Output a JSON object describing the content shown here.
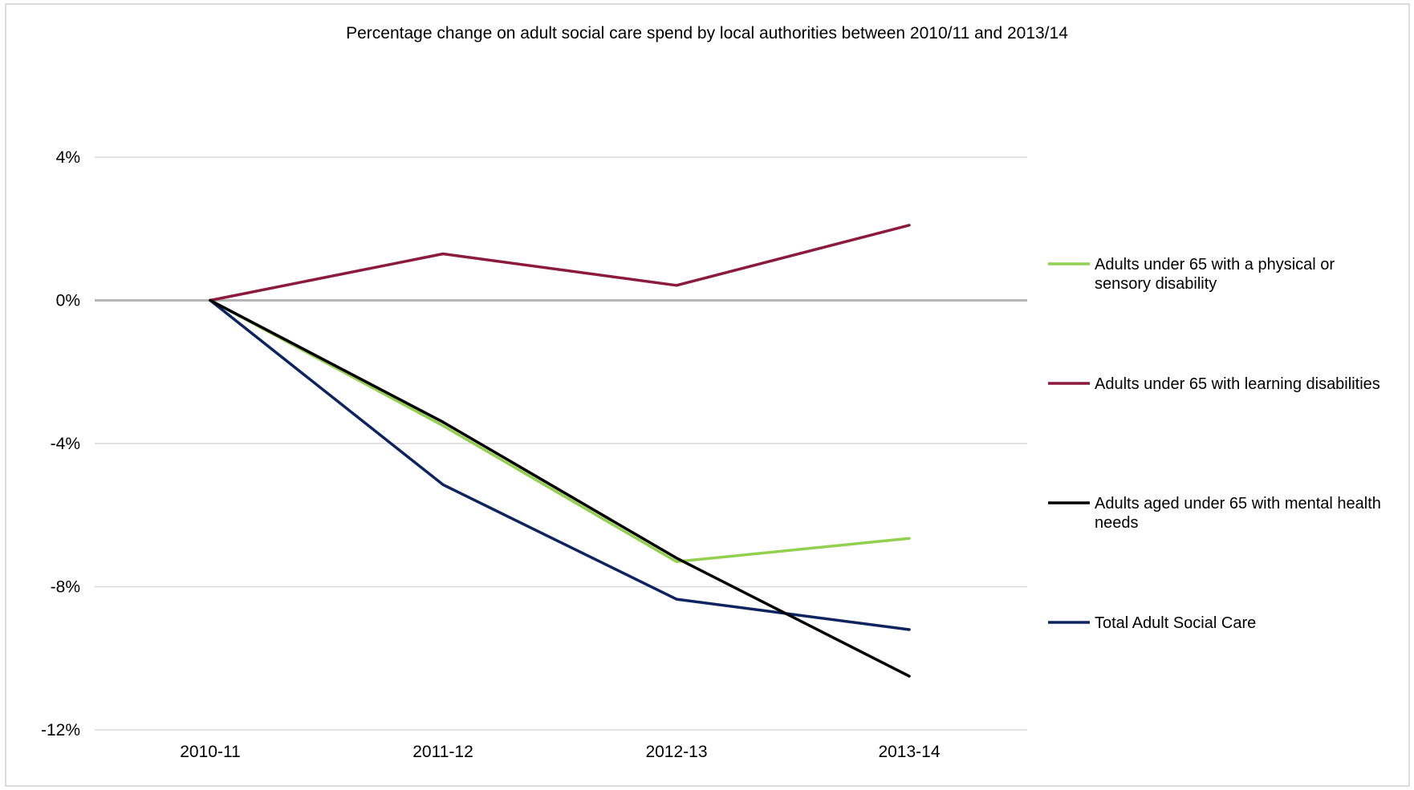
{
  "chart_data": {
    "type": "line",
    "title": "Percentage change on adult social care spend by local authorities between 2010/11 and 2013/14",
    "xlabel": "",
    "ylabel": "",
    "categories": [
      "2010-11",
      "2011-12",
      "2012-13",
      "2013-14"
    ],
    "ylim": [
      -12,
      4
    ],
    "yticks": [
      4,
      0,
      -4,
      -8,
      -12
    ],
    "ytick_labels": [
      "4%",
      "0%",
      "-4%",
      "-8%",
      "-12%"
    ],
    "grid": true,
    "legend_position": "right",
    "series": [
      {
        "name": "Adults under 65 with a physical or sensory disability",
        "legend_lines": [
          "Adults under 65 with a physical or",
          "sensory disability"
        ],
        "color": "#92d050",
        "values": [
          0,
          -3.5,
          -7.3,
          -6.65
        ]
      },
      {
        "name": "Adults under 65 with learning disabilities",
        "legend_lines": [
          "Adults under 65 with learning disabilities"
        ],
        "color": "#8b1a3c",
        "values": [
          0,
          1.3,
          0.42,
          2.1
        ]
      },
      {
        "name": "Adults aged under 65 with mental health needs",
        "legend_lines": [
          "Adults aged under 65 with mental health",
          "needs"
        ],
        "color": "#000000",
        "values": [
          0,
          -3.4,
          -7.2,
          -10.5
        ]
      },
      {
        "name": "Total Adult Social Care",
        "legend_lines": [
          "Total Adult Social Care"
        ],
        "color": "#0d2460",
        "values": [
          0,
          -5.15,
          -8.35,
          -9.2
        ]
      }
    ]
  }
}
